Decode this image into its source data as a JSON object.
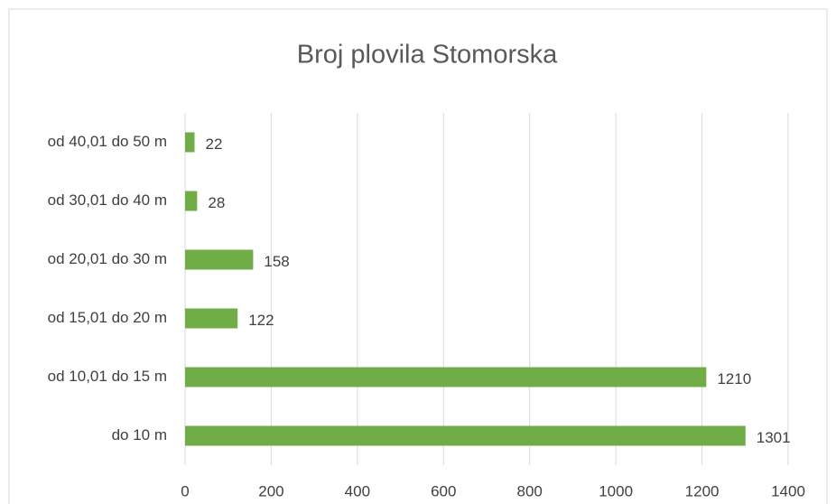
{
  "chart_data": {
    "type": "bar",
    "orientation": "horizontal",
    "title": "Broj plovila Stomorska",
    "categories": [
      "od 40,01 do 50 m",
      "od 30,01 do 40 m",
      "od 20,01 do 30 m",
      "od 15,01 do 20 m",
      "od 10,01 do 15 m",
      "do 10 m"
    ],
    "values": [
      22,
      28,
      158,
      122,
      1210,
      1301
    ],
    "color": "#70ad47",
    "xlim": [
      0,
      1400
    ],
    "xticks": [
      0,
      200,
      400,
      600,
      800,
      1000,
      1200,
      1400
    ],
    "grid": true
  }
}
